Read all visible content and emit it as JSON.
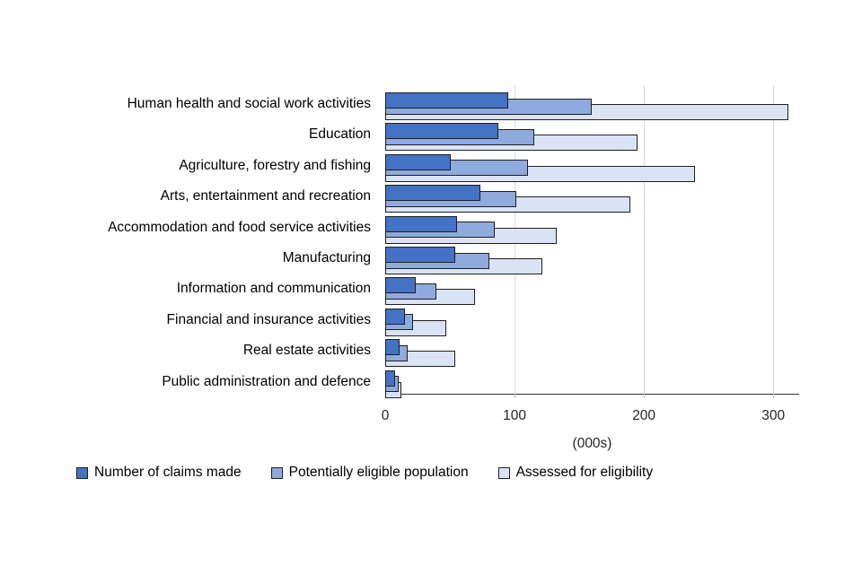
{
  "chart_data": {
    "type": "bar",
    "orientation": "horizontal",
    "title": "",
    "xlabel": "(000s)",
    "ylabel": "",
    "x_ticks": [
      0,
      100,
      200,
      300
    ],
    "xlim": [
      0,
      320
    ],
    "grid": "vertical-light-gray",
    "legend_position": "bottom",
    "categories": [
      "Human health and social work activities",
      "Education",
      "Agriculture, forestry and fishing",
      "Arts, entertainment and recreation",
      "Accommodation and food service activities",
      "Manufacturing",
      "Information and communication",
      "Financial and insurance activities",
      "Real estate activities",
      "Public administration and defence"
    ],
    "series": [
      {
        "name": "Number of claims made",
        "color": "#4472C4",
        "values": [
          94,
          86,
          49,
          72,
          54,
          53,
          22,
          14,
          10,
          6
        ]
      },
      {
        "name": "Potentially eligible population",
        "color": "#8FAADC",
        "values": [
          158,
          114,
          109,
          100,
          83,
          79,
          38,
          20,
          16,
          9
        ]
      },
      {
        "name": "Assessed for eligibility",
        "color": "#DAE3F3",
        "values": [
          310,
          194,
          238,
          188,
          131,
          120,
          68,
          46,
          53,
          11
        ]
      }
    ]
  },
  "colors": {
    "bar_border": "#1f1f1f",
    "gridline": "#d9d9d9",
    "axis_line": "#333333",
    "text": "#000000",
    "background": "#ffffff"
  }
}
